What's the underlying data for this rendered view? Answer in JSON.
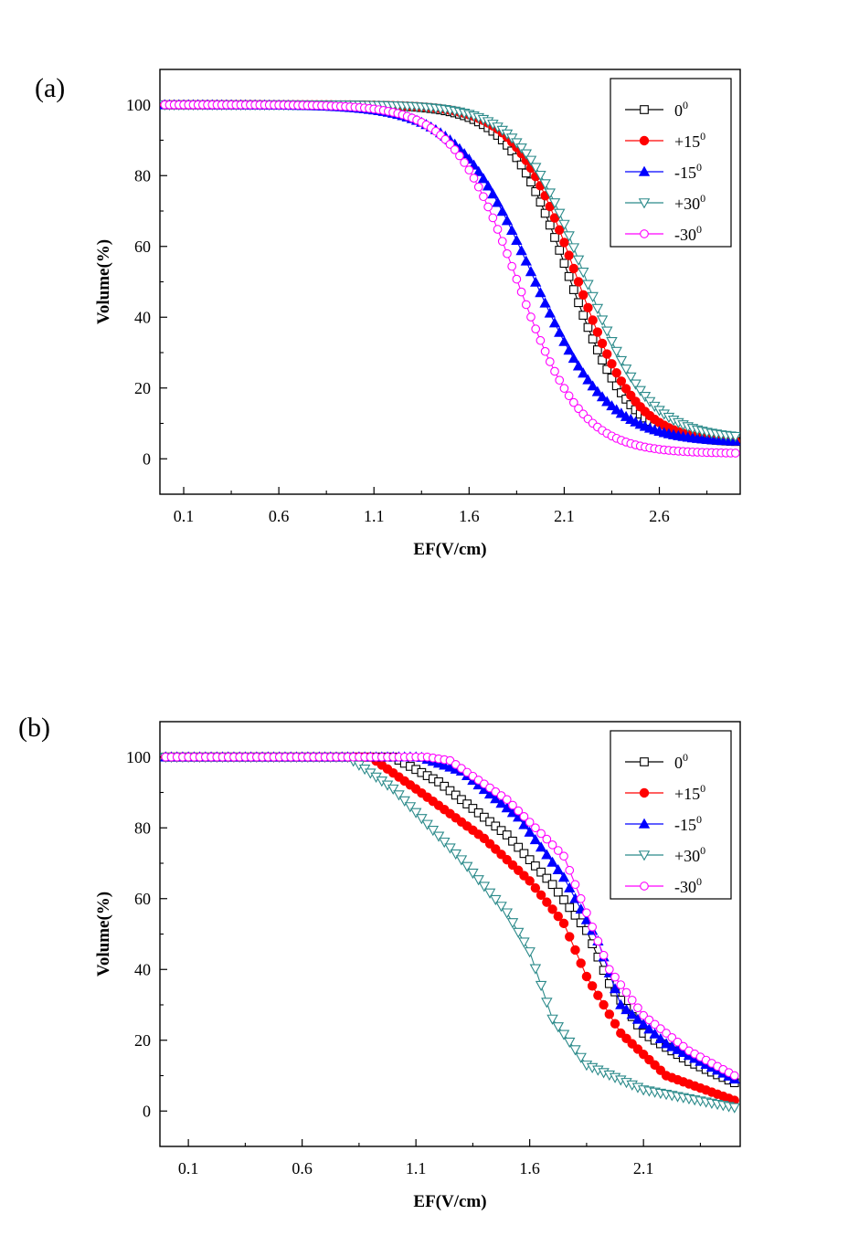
{
  "chart_data": [
    {
      "panel_label": "(a)",
      "type": "line",
      "xlabel": "EF(V/cm)",
      "ylabel": "Volume(%)",
      "xlim": [
        -0.025,
        3.025
      ],
      "ylim": [
        -10,
        110
      ],
      "xticks": [
        0.1,
        0.6,
        1.1,
        1.6,
        2.1,
        2.6
      ],
      "xtick_labels": [
        "0.1",
        "0.6",
        "1.1",
        "1.6",
        "2.1",
        "2.6"
      ],
      "yticks": [
        0,
        20,
        40,
        60,
        80,
        100
      ],
      "ytick_labels": [
        "0",
        "20",
        "40",
        "60",
        "80",
        "100"
      ],
      "legend_position": "top-right",
      "x": {
        "start": 0.0,
        "end": 3.0,
        "step": 0.025
      },
      "series": [
        {
          "name": "0",
          "superscript": "0",
          "marker": "square-open",
          "color": "#000000",
          "curve": {
            "midpoint": 2.12,
            "slope": 0.16,
            "floor": 4.5
          }
        },
        {
          "name": "+15",
          "superscript": "0",
          "marker": "circle-filled",
          "color": "#ff0000",
          "curve": {
            "midpoint": 2.16,
            "slope": 0.16,
            "floor": 4.5
          }
        },
        {
          "name": "-15",
          "superscript": "0",
          "marker": "triangle-up-filled",
          "color": "#0000ff",
          "curve": {
            "midpoint": 1.93,
            "slope": 0.2,
            "floor": 4.5
          }
        },
        {
          "name": "+30",
          "superscript": "0",
          "marker": "triangle-down-open",
          "color": "#2b8a8a",
          "curve": {
            "midpoint": 2.2,
            "slope": 0.17,
            "floor": 5.5
          }
        },
        {
          "name": "-30",
          "superscript": "0",
          "marker": "circle-open",
          "color": "#ff00ff",
          "curve": {
            "midpoint": 1.85,
            "slope": 0.17,
            "floor": 1.5
          }
        }
      ]
    },
    {
      "panel_label": "(b)",
      "type": "line",
      "xlabel": "EF(V/cm)",
      "ylabel": "Volume(%)",
      "xlim": [
        -0.025,
        2.525
      ],
      "ylim": [
        -10,
        110
      ],
      "xticks": [
        0.1,
        0.6,
        1.1,
        1.6,
        2.1
      ],
      "xtick_labels": [
        "0.1",
        "0.6",
        "1.1",
        "1.6",
        "2.1"
      ],
      "yticks": [
        0,
        20,
        40,
        60,
        80,
        100
      ],
      "ytick_labels": [
        "0",
        "20",
        "40",
        "60",
        "80",
        "100"
      ],
      "legend_position": "top-right",
      "x": {
        "start": 0.0,
        "end": 2.5,
        "step": 0.025
      },
      "series": [
        {
          "name": "0",
          "superscript": "0",
          "marker": "square-open",
          "color": "#000000",
          "points": [
            [
              0.0,
              100
            ],
            [
              1.0,
              100
            ],
            [
              1.2,
              93
            ],
            [
              1.5,
              78
            ],
            [
              1.7,
              64
            ],
            [
              1.85,
              51
            ],
            [
              1.95,
              36
            ],
            [
              2.1,
              22
            ],
            [
              2.3,
              14
            ],
            [
              2.5,
              8
            ]
          ]
        },
        {
          "name": "+15",
          "superscript": "0",
          "marker": "circle-filled",
          "color": "#ff0000",
          "points": [
            [
              0.0,
              100
            ],
            [
              0.9,
              100
            ],
            [
              1.1,
              91
            ],
            [
              1.4,
              77
            ],
            [
              1.6,
              65
            ],
            [
              1.75,
              53
            ],
            [
              1.85,
              38
            ],
            [
              2.0,
              22
            ],
            [
              2.2,
              10
            ],
            [
              2.5,
              3
            ]
          ]
        },
        {
          "name": "-15",
          "superscript": "0",
          "marker": "triangle-up-filled",
          "color": "#0000ff",
          "points": [
            [
              0.0,
              100
            ],
            [
              1.12,
              100
            ],
            [
              1.3,
              96
            ],
            [
              1.55,
              83
            ],
            [
              1.75,
              66
            ],
            [
              1.9,
              48
            ],
            [
              2.0,
              30
            ],
            [
              2.2,
              19
            ],
            [
              2.5,
              9
            ]
          ]
        },
        {
          "name": "+30",
          "superscript": "0",
          "marker": "triangle-down-open",
          "color": "#2b8a8a",
          "points": [
            [
              0.0,
              100
            ],
            [
              0.8,
              100
            ],
            [
              1.0,
              91
            ],
            [
              1.3,
              71
            ],
            [
              1.5,
              56
            ],
            [
              1.6,
              45
            ],
            [
              1.7,
              26
            ],
            [
              1.85,
              13
            ],
            [
              2.1,
              6
            ],
            [
              2.5,
              1
            ]
          ]
        },
        {
          "name": "-30",
          "superscript": "0",
          "marker": "circle-open",
          "color": "#ff00ff",
          "points": [
            [
              0.0,
              100
            ],
            [
              1.15,
              100
            ],
            [
              1.25,
              99
            ],
            [
              1.5,
              88
            ],
            [
              1.75,
              72
            ],
            [
              1.95,
              40
            ],
            [
              2.1,
              27
            ],
            [
              2.3,
              17
            ],
            [
              2.5,
              10
            ]
          ]
        }
      ]
    }
  ]
}
